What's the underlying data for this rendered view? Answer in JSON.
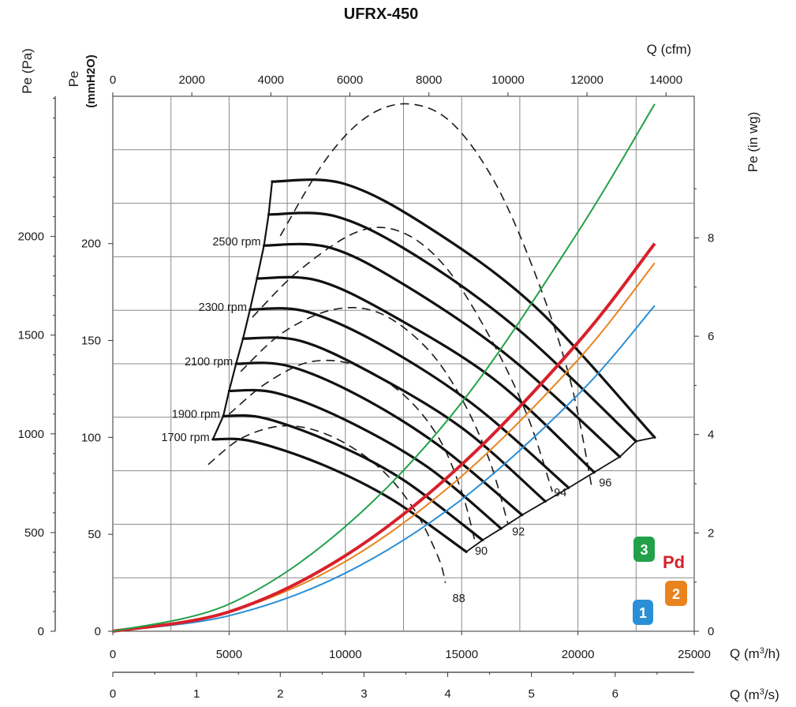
{
  "chart_data": {
    "type": "line",
    "title": "UFRX-450",
    "axes": {
      "x_bottom_m3h": {
        "label": "Q (m³/h)",
        "label_base": "Q (m",
        "label_sup": "3",
        "label_end": "/h)",
        "range": [
          0,
          25000
        ],
        "ticks": [
          "0",
          "5000",
          "10000",
          "15000",
          "20000",
          "25000"
        ]
      },
      "x_bottom_m3s": {
        "label": "Q (m³/s)",
        "label_base": "Q (m",
        "label_sup": "3",
        "label_end": "/s)",
        "range": [
          0,
          6.944
        ],
        "ticks": [
          "0",
          "1",
          "2",
          "3",
          "4",
          "5",
          "6"
        ]
      },
      "x_top_cfm": {
        "label": "Q (cfm)",
        "range": [
          0,
          14714
        ],
        "ticks": [
          "0",
          "2000",
          "4000",
          "6000",
          "8000",
          "10000",
          "12000",
          "14000"
        ]
      },
      "y_left_pa": {
        "label": "Pe (Pa)",
        "range": [
          0,
          2710
        ],
        "ticks": [
          "0",
          "500",
          "1000",
          "1500",
          "2000"
        ]
      },
      "y_left_mmh2o": {
        "label": "Pe",
        "label_unit": "(mmH2O)",
        "range": [
          0,
          276
        ],
        "ticks": [
          "0",
          "50",
          "100",
          "150",
          "200"
        ]
      },
      "y_right_inwg": {
        "label": "Pe (in wg)",
        "range": [
          0,
          10.88
        ],
        "ticks": [
          "0",
          "2",
          "4",
          "6",
          "8"
        ]
      }
    },
    "grid": true,
    "rpm_labels": [
      "2500 rpm",
      "2300 rpm",
      "2100 rpm",
      "1900 rpm",
      "1700 rpm"
    ],
    "fan_curves": [
      {
        "shutoff_q": 4300,
        "end_q": 15200,
        "points": [
          [
            4300,
            99
          ],
          [
            6000,
            98
          ],
          [
            9000,
            86
          ],
          [
            12000,
            68
          ],
          [
            15200,
            41
          ]
        ]
      },
      {
        "shutoff_q": 4750,
        "end_q": 15900,
        "points": [
          [
            4750,
            111
          ],
          [
            6500,
            110
          ],
          [
            9500,
            97
          ],
          [
            12500,
            78
          ],
          [
            15900,
            47
          ]
        ]
      },
      {
        "shutoff_q": 5000,
        "end_q": 16700,
        "points": [
          [
            5000,
            124
          ],
          [
            7000,
            123
          ],
          [
            10000,
            109
          ],
          [
            13500,
            85
          ],
          [
            16700,
            53
          ]
        ]
      },
      {
        "shutoff_q": 5300,
        "end_q": 17600,
        "points": [
          [
            5300,
            138
          ],
          [
            7500,
            137
          ],
          [
            10500,
            122
          ],
          [
            14000,
            96
          ],
          [
            17600,
            60
          ]
        ]
      },
      {
        "shutoff_q": 5600,
        "end_q": 18600,
        "points": [
          [
            5600,
            151
          ],
          [
            8000,
            150
          ],
          [
            11000,
            134
          ],
          [
            15000,
            105
          ],
          [
            18600,
            67
          ]
        ]
      },
      {
        "shutoff_q": 5900,
        "end_q": 19600,
        "points": [
          [
            5900,
            166
          ],
          [
            8300,
            165
          ],
          [
            11500,
            148
          ],
          [
            15500,
            117
          ],
          [
            19600,
            74
          ]
        ]
      },
      {
        "shutoff_q": 6200,
        "end_q": 20700,
        "points": [
          [
            6200,
            182
          ],
          [
            8800,
            181
          ],
          [
            12000,
            163
          ],
          [
            16500,
            129
          ],
          [
            20700,
            82
          ]
        ]
      },
      {
        "shutoff_q": 6500,
        "end_q": 21800,
        "points": [
          [
            6500,
            199
          ],
          [
            9300,
            198
          ],
          [
            12500,
            179
          ],
          [
            17000,
            142
          ],
          [
            21800,
            90
          ]
        ]
      },
      {
        "shutoff_q": 6700,
        "end_q": 22500,
        "points": [
          [
            6700,
            215
          ],
          [
            9600,
            214
          ],
          [
            13000,
            194
          ],
          [
            17500,
            155
          ],
          [
            22500,
            98
          ]
        ]
      },
      {
        "shutoff_q": 6850,
        "end_q": 23300,
        "points": [
          [
            6850,
            232
          ],
          [
            9900,
            231
          ],
          [
            13500,
            209
          ],
          [
            18200,
            167
          ],
          [
            23300,
            100
          ]
        ]
      }
    ],
    "efficiency_labels": [
      "88",
      "90",
      "92",
      "94",
      "96"
    ],
    "efficiency_curves": [
      {
        "label": "88",
        "points": [
          [
            4100,
            86
          ],
          [
            5600,
            100
          ],
          [
            7500,
            106
          ],
          [
            9500,
            100
          ],
          [
            11500,
            84
          ],
          [
            13000,
            62
          ],
          [
            14000,
            38
          ],
          [
            14300,
            25
          ]
        ]
      },
      {
        "label": "90",
        "points": [
          [
            5000,
            112
          ],
          [
            6600,
            128
          ],
          [
            8500,
            139
          ],
          [
            10500,
            137
          ],
          [
            12500,
            122
          ],
          [
            14000,
            100
          ],
          [
            15000,
            72
          ],
          [
            15600,
            45
          ]
        ]
      },
      {
        "label": "92",
        "points": [
          [
            5500,
            134
          ],
          [
            7300,
            154
          ],
          [
            9500,
            166
          ],
          [
            11500,
            164
          ],
          [
            13500,
            146
          ],
          [
            15000,
            120
          ],
          [
            16200,
            88
          ],
          [
            17000,
            55
          ]
        ]
      },
      {
        "label": "94",
        "points": [
          [
            6000,
            162
          ],
          [
            8000,
            186
          ],
          [
            10500,
            206
          ],
          [
            12400,
            206
          ],
          [
            14300,
            188
          ],
          [
            16200,
            152
          ],
          [
            17800,
            112
          ],
          [
            18900,
            72
          ]
        ]
      },
      {
        "label": "96",
        "points": [
          [
            7200,
            204
          ],
          [
            9200,
            244
          ],
          [
            11000,
            266
          ],
          [
            12800,
            272
          ],
          [
            14600,
            262
          ],
          [
            16500,
            230
          ],
          [
            18300,
            180
          ],
          [
            19700,
            128
          ],
          [
            20600,
            74
          ]
        ]
      }
    ],
    "pd_series": [
      {
        "name": "1",
        "color": "#2a8fd6",
        "points": [
          [
            0,
            0
          ],
          [
            5000,
            8
          ],
          [
            10000,
            30
          ],
          [
            15000,
            68
          ],
          [
            20000,
            122
          ],
          [
            23300,
            168
          ]
        ]
      },
      {
        "name": "2",
        "color": "#e8831e",
        "points": [
          [
            0,
            0
          ],
          [
            5000,
            10
          ],
          [
            10000,
            36
          ],
          [
            15000,
            80
          ],
          [
            20000,
            140
          ],
          [
            23300,
            190
          ]
        ]
      },
      {
        "name": "Pd",
        "color": "#d8202a",
        "points": [
          [
            0,
            0
          ],
          [
            5000,
            10
          ],
          [
            10000,
            39
          ],
          [
            15000,
            86
          ],
          [
            20000,
            149
          ],
          [
            23300,
            200
          ]
        ]
      },
      {
        "name": "3",
        "color": "#22a04a",
        "points": [
          [
            0,
            0
          ],
          [
            5000,
            14
          ],
          [
            10000,
            54
          ],
          [
            15000,
            118
          ],
          [
            20000,
            206
          ],
          [
            23300,
            272
          ]
        ]
      }
    ],
    "badges": [
      {
        "text": "3",
        "color": "#22a04a"
      },
      {
        "text": "Pd",
        "color": "#d8202a"
      },
      {
        "text": "2",
        "color": "#e8831e"
      },
      {
        "text": "1",
        "color": "#2a8fd6"
      }
    ]
  }
}
